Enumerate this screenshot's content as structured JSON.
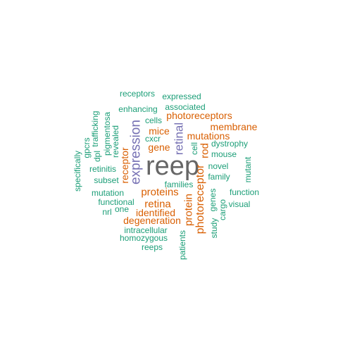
{
  "colors": {
    "green": "#1b9e77",
    "orange": "#d95f02",
    "purple": "#7570b3",
    "gray": "#666666"
  },
  "words": [
    {
      "text": "reep",
      "color": "gray"
    },
    {
      "text": "expression",
      "color": "purple"
    },
    {
      "text": "retinal",
      "color": "purple"
    },
    {
      "text": "proteins",
      "color": "orange"
    },
    {
      "text": "photoreceptor",
      "color": "orange"
    },
    {
      "text": "protein",
      "color": "orange"
    },
    {
      "text": "retina",
      "color": "orange"
    },
    {
      "text": "identified",
      "color": "orange"
    },
    {
      "text": "degeneration",
      "color": "orange"
    },
    {
      "text": "photoreceptors",
      "color": "orange"
    },
    {
      "text": "membrane",
      "color": "orange"
    },
    {
      "text": "mutations",
      "color": "orange"
    },
    {
      "text": "mice",
      "color": "orange"
    },
    {
      "text": "gene",
      "color": "orange"
    },
    {
      "text": "rod",
      "color": "orange"
    },
    {
      "text": "receptor",
      "color": "orange"
    },
    {
      "text": "receptors",
      "color": "green"
    },
    {
      "text": "expressed",
      "color": "green"
    },
    {
      "text": "enhancing",
      "color": "green"
    },
    {
      "text": "associated",
      "color": "green"
    },
    {
      "text": "cells",
      "color": "green"
    },
    {
      "text": "cxcr",
      "color": "green"
    },
    {
      "text": "dystrophy",
      "color": "green"
    },
    {
      "text": "mouse",
      "color": "green"
    },
    {
      "text": "novel",
      "color": "green"
    },
    {
      "text": "family",
      "color": "green"
    },
    {
      "text": "families",
      "color": "green"
    },
    {
      "text": "retinitis",
      "color": "green"
    },
    {
      "text": "subset",
      "color": "green"
    },
    {
      "text": "mutation",
      "color": "green"
    },
    {
      "text": "functional",
      "color": "green"
    },
    {
      "text": "nrl",
      "color": "green"
    },
    {
      "text": "one",
      "color": "green"
    },
    {
      "text": "function",
      "color": "green"
    },
    {
      "text": "visual",
      "color": "green"
    },
    {
      "text": "intracellular",
      "color": "green"
    },
    {
      "text": "homozygous",
      "color": "green"
    },
    {
      "text": "reeps",
      "color": "green"
    },
    {
      "text": "trafficking",
      "color": "green"
    },
    {
      "text": "pigmentosa",
      "color": "green"
    },
    {
      "text": "revealed",
      "color": "green"
    },
    {
      "text": "dpl",
      "color": "green"
    },
    {
      "text": "gpcrs",
      "color": "green"
    },
    {
      "text": "specifically",
      "color": "green"
    },
    {
      "text": "cell",
      "color": "green"
    },
    {
      "text": "genes",
      "color": "green"
    },
    {
      "text": "cargo",
      "color": "green"
    },
    {
      "text": "study",
      "color": "green"
    },
    {
      "text": "patients",
      "color": "green"
    },
    {
      "text": "mutant",
      "color": "green"
    }
  ]
}
